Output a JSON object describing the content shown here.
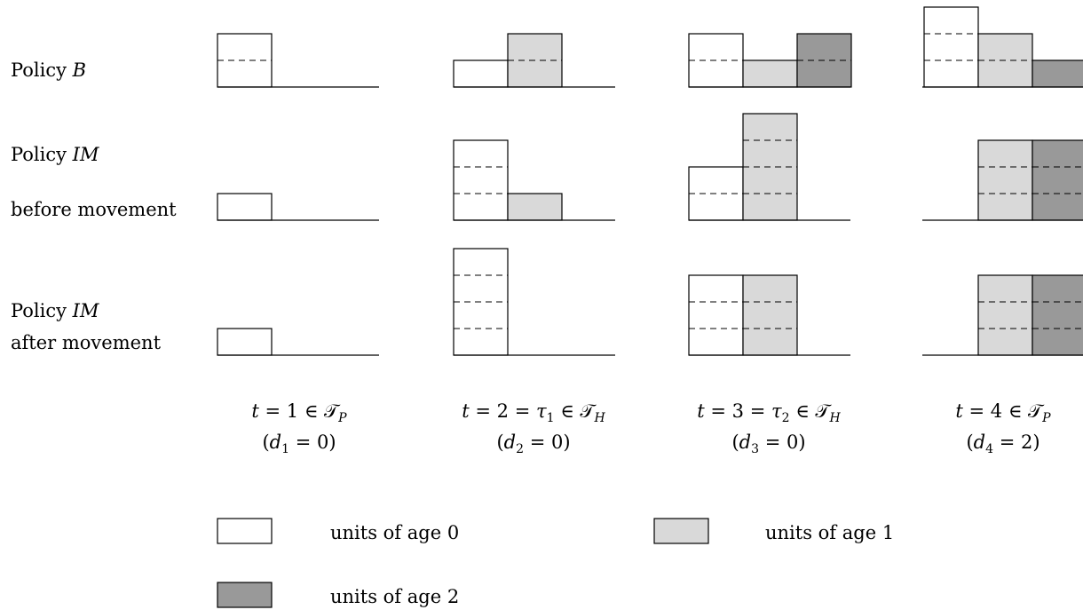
{
  "row_labels": [
    {
      "lines": [
        "Policy <i>B</i>"
      ]
    },
    {
      "lines": [
        "Policy <i>IM</i>",
        "before movement"
      ]
    },
    {
      "lines": [
        "Policy <i>IM</i>",
        "after movement"
      ]
    }
  ],
  "time_captions": [
    {
      "line1": "<i>t</i> = 1 ∈ 𝒯<tspan class='sub' dy='5' font-size='14'><i>P</i></tspan>",
      "line2": "(<i>d</i><tspan dy='5' font-size='14'>1</tspan><tspan dy='-5'> = 0)</tspan>"
    },
    {
      "line1": "<i>t</i> = 2 = <i>τ</i><tspan dy='5' font-size='14'>1</tspan><tspan dy='-5'> ∈ 𝒯</tspan><tspan dy='5' font-size='14'><i>H</i></tspan>",
      "line2": "(<i>d</i><tspan dy='5' font-size='14'>2</tspan><tspan dy='-5'> = 0)</tspan>"
    },
    {
      "line1": "<i>t</i> = 3 = <i>τ</i><tspan dy='5' font-size='14'>2</tspan><tspan dy='-5'> ∈ 𝒯</tspan><tspan dy='5' font-size='14'><i>H</i></tspan>",
      "line2": "(<i>d</i><tspan dy='5' font-size='14'>3</tspan><tspan dy='-5'> = 0)</tspan>"
    },
    {
      "line1": "<i>t</i> = 4 ∈ 𝒯<tspan dy='5' font-size='14'><i>P</i></tspan>",
      "line2": "(<i>d</i><tspan dy='5' font-size='14'>4</tspan><tspan dy='-5'> = 2)</tspan>"
    }
  ],
  "legend": [
    {
      "label": "units of age 0",
      "age": 0
    },
    {
      "label": "units of age 1",
      "age": 1
    },
    {
      "label": "units of age 2",
      "age": 2
    }
  ],
  "colors": {
    "age0": "#ffffff",
    "age1": "#d9d9d9",
    "age2": "#999999",
    "stroke": "#000000"
  },
  "panels": [
    [
      {
        "stacks": [
          {
            "age": 0,
            "units": 2
          }
        ]
      },
      {
        "stacks": [
          {
            "age": 0,
            "units": 1
          },
          {
            "age": 1,
            "units": 2
          }
        ]
      },
      {
        "stacks": [
          {
            "age": 0,
            "units": 2
          },
          {
            "age": 1,
            "units": 1
          },
          {
            "age": 2,
            "units": 2
          }
        ]
      },
      {
        "stacks": [
          {
            "age": 0,
            "units": 3
          },
          {
            "age": 1,
            "units": 2
          },
          {
            "age": 2,
            "units": 1
          }
        ]
      }
    ],
    [
      {
        "stacks": [
          {
            "age": 0,
            "units": 1
          }
        ]
      },
      {
        "stacks": [
          {
            "age": 0,
            "units": 3
          },
          {
            "age": 1,
            "units": 1
          }
        ]
      },
      {
        "stacks": [
          {
            "age": 0,
            "units": 2
          },
          {
            "age": 1,
            "units": 4
          }
        ]
      },
      {
        "stacks": [
          {
            "age": 0,
            "units": 0
          },
          {
            "age": 1,
            "units": 3
          },
          {
            "age": 2,
            "units": 3
          }
        ]
      }
    ],
    [
      {
        "stacks": [
          {
            "age": 0,
            "units": 1
          }
        ]
      },
      {
        "stacks": [
          {
            "age": 0,
            "units": 4
          }
        ]
      },
      {
        "stacks": [
          {
            "age": 0,
            "units": 3
          },
          {
            "age": 1,
            "units": 3
          }
        ]
      },
      {
        "stacks": [
          {
            "age": 0,
            "units": 0
          },
          {
            "age": 1,
            "units": 3
          },
          {
            "age": 2,
            "units": 3
          }
        ]
      }
    ]
  ]
}
